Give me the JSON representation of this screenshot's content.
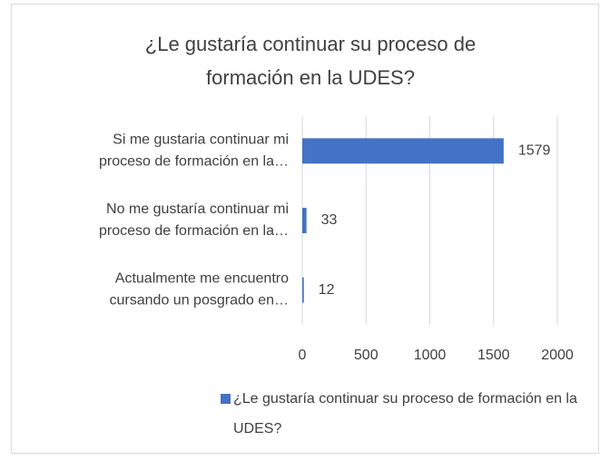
{
  "chart_data": {
    "type": "barh",
    "title": "¿Le gustaría continuar su proceso de\nformación en la UDES?",
    "categories": [
      "Si me gustaria continuar mi\nproceso de formación en la…",
      "No me gustaría continuar mi\nproceso de formación en la…",
      "Actualmente me encuentro\ncursando un posgrado en…"
    ],
    "series": [
      {
        "name": "¿Le gustaría continuar su proceso de formación en la\nUDES?",
        "color": "#4472c4",
        "values": [
          1579,
          33,
          12
        ]
      }
    ],
    "xlim": [
      0,
      2000
    ],
    "xticks": [
      0,
      500,
      1000,
      1500,
      2000
    ],
    "grid": true,
    "legend": "bottom"
  }
}
